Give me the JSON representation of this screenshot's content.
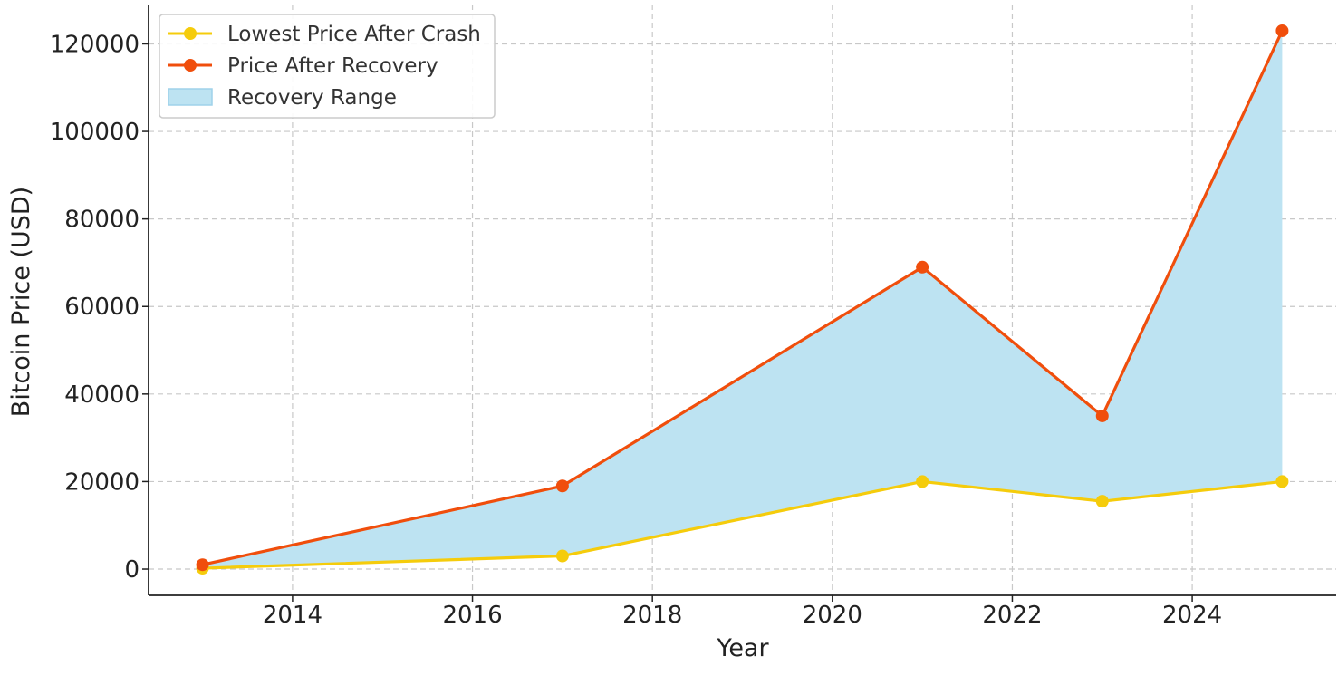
{
  "chart_data": {
    "type": "line",
    "title": "",
    "xlabel": "Year",
    "ylabel": "Bitcoin Price (USD)",
    "xlim": [
      2012.4,
      2025.6
    ],
    "ylim": [
      -6000,
      129000
    ],
    "x_ticks": [
      2014,
      2016,
      2018,
      2020,
      2022,
      2024
    ],
    "y_ticks": [
      0,
      20000,
      40000,
      60000,
      80000,
      100000,
      120000
    ],
    "x": [
      2013,
      2017,
      2021,
      2023,
      2025
    ],
    "grid": true,
    "legend_position": "top-left",
    "series": [
      {
        "name": "Lowest Price After Crash",
        "values": [
          200,
          3000,
          20000,
          15500,
          20000
        ],
        "color": "#f5cc0c",
        "marker": "circle"
      },
      {
        "name": "Price After Recovery",
        "values": [
          1000,
          19000,
          69000,
          35000,
          123000
        ],
        "color": "#f04e0c",
        "marker": "circle"
      }
    ],
    "fill_between": {
      "name": "Recovery Range",
      "lower": "Lowest Price After Crash",
      "upper": "Price After Recovery",
      "color": "#bde3f2"
    }
  }
}
